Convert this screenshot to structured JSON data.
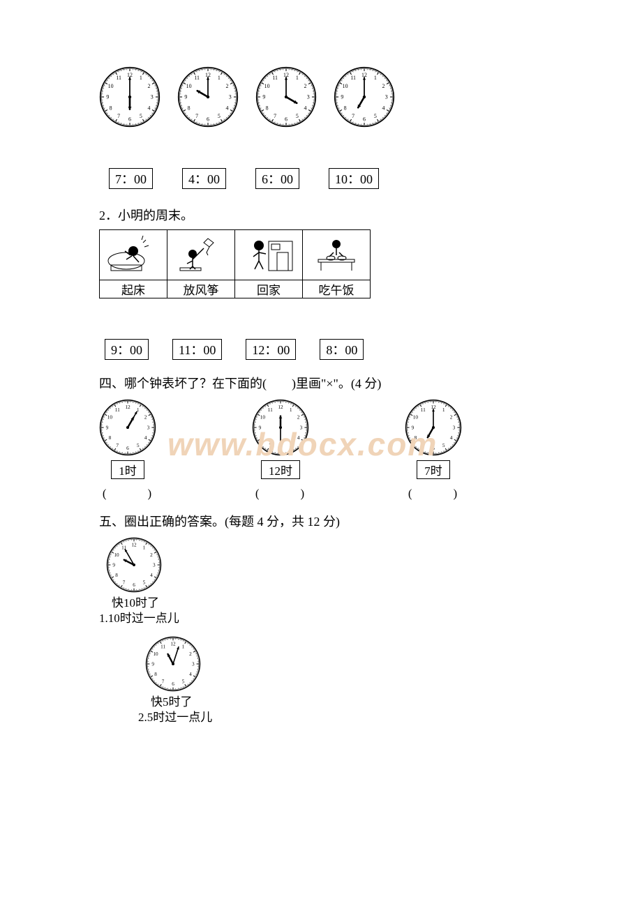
{
  "clocks_top": [
    {
      "hour": 6,
      "minute": 0
    },
    {
      "hour": 10,
      "minute": 0
    },
    {
      "hour": 4,
      "minute": 0
    },
    {
      "hour": 7,
      "minute": 0
    }
  ],
  "time_boxes_top": [
    "7：00",
    "4：00",
    "6：00",
    "10：00"
  ],
  "q2": {
    "title": "2．小明的周末。",
    "activities": [
      "起床",
      "放风筝",
      "回家",
      "吃午饭"
    ]
  },
  "time_boxes_q2": [
    "9：00",
    "11：00",
    "12：00",
    "8：00"
  ],
  "section4": {
    "title": "四、哪个钟表坏了？在下面的(　　)里画\"×\"。(4 分)",
    "items": [
      {
        "hour": 12,
        "minute": 5,
        "hour_hand_angle": 30,
        "label": "1时"
      },
      {
        "hour": 12,
        "minute": 30,
        "hour_hand_angle": 0,
        "label": "12时"
      },
      {
        "hour": 7,
        "minute": 0,
        "hour_hand_angle": 210,
        "label": "7时"
      }
    ],
    "paren": "(　　　)"
  },
  "section5": {
    "title": "五、圈出正确的答案。(每题 4 分，共 12 分)",
    "items": [
      {
        "clock": {
          "hour": 9,
          "minute": 55,
          "hour_hand_angle": 297
        },
        "option1": "快10时了",
        "option2": "10时过一点儿",
        "prefix": "1."
      },
      {
        "clock": {
          "hour": 11,
          "minute": 3,
          "hour_hand_angle": 332
        },
        "option1": "快5时了",
        "option2": "5时过一点儿",
        "prefix": "2."
      }
    ]
  },
  "colors": {
    "black": "#000000",
    "white": "#ffffff",
    "watermark": "#f0d4b8"
  }
}
